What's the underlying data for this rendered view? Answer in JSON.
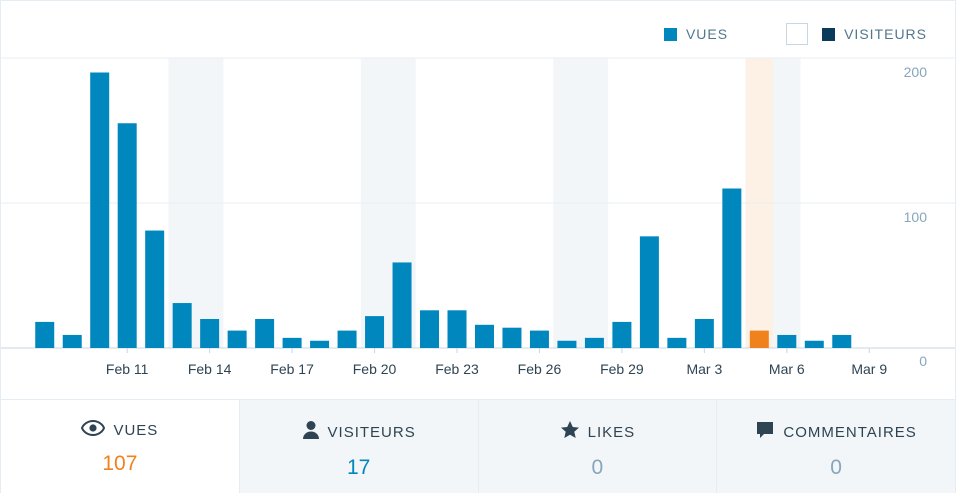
{
  "legend": {
    "views_label": "VUES",
    "visitors_label": "VISITEURS"
  },
  "colors": {
    "views": "#0087be",
    "highlight": "#f0821e",
    "visitors": "#0a3a5c",
    "weekend_band": "#f3f6f8",
    "highlight_band": "#fdf1e6"
  },
  "chart_data": {
    "type": "bar",
    "series_name": "VUES",
    "days": [
      "Feb 8",
      "Feb 9",
      "Feb 10",
      "Feb 11",
      "Feb 12",
      "Feb 13",
      "Feb 14",
      "Feb 15",
      "Feb 16",
      "Feb 17",
      "Feb 18",
      "Feb 19",
      "Feb 20",
      "Feb 21",
      "Feb 22",
      "Feb 23",
      "Feb 24",
      "Feb 25",
      "Feb 26",
      "Feb 27",
      "Feb 28",
      "Feb 29",
      "Mar 1",
      "Mar 2",
      "Mar 3",
      "Mar 4",
      "Mar 5",
      "Mar 6",
      "Mar 7",
      "Mar 8",
      "Mar 9"
    ],
    "values": [
      18,
      9,
      190,
      155,
      81,
      31,
      20,
      12,
      20,
      7,
      5,
      12,
      22,
      59,
      26,
      26,
      16,
      14,
      12,
      5,
      7,
      18,
      77,
      7,
      20,
      110,
      12,
      9,
      5,
      9,
      0
    ],
    "highlight_day": "Mar 5",
    "weekend_bands": [
      [
        "Feb 13",
        "Feb 14"
      ],
      [
        "Feb 20",
        "Feb 21"
      ],
      [
        "Feb 27",
        "Feb 28"
      ],
      [
        "Mar 5",
        "Mar 6"
      ]
    ],
    "x_tick_labels": [
      {
        "label": "Feb 11",
        "day": "Feb 11"
      },
      {
        "label": "Feb 14",
        "day": "Feb 14"
      },
      {
        "label": "Feb 17",
        "day": "Feb 17"
      },
      {
        "label": "Feb 20",
        "day": "Feb 20"
      },
      {
        "label": "Feb 23",
        "day": "Feb 23"
      },
      {
        "label": "Feb 26",
        "day": "Feb 26"
      },
      {
        "label": "Feb 29",
        "day": "Feb 29"
      },
      {
        "label": "Mar 3",
        "day": "Mar 3"
      },
      {
        "label": "Mar 6",
        "day": "Mar 6"
      },
      {
        "label": "Mar 9",
        "day": "Mar 9"
      }
    ],
    "y_ticks": [
      {
        "label": "200",
        "value": 200
      },
      {
        "label": "100",
        "value": 100
      },
      {
        "label": "0",
        "value": 0
      }
    ],
    "ylim": [
      0,
      200
    ],
    "grid": true
  },
  "tabs": [
    {
      "label": "VUES",
      "value": "107"
    },
    {
      "label": "VISITEURS",
      "value": "17"
    },
    {
      "label": "LIKES",
      "value": "0"
    },
    {
      "label": "COMMENTAIRES",
      "value": "0"
    }
  ]
}
